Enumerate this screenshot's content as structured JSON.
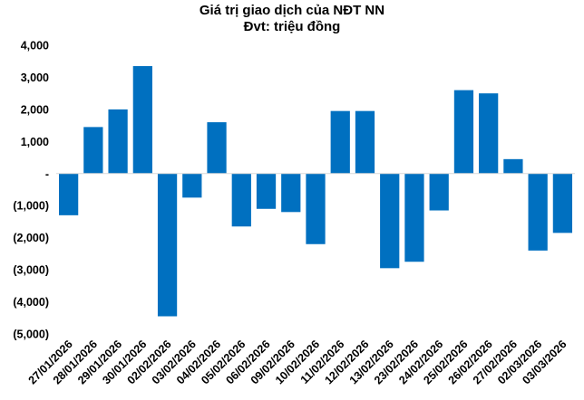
{
  "chart_data": {
    "type": "bar",
    "title": [
      "Giá trị giao dịch của NĐT NN",
      "Đvt: triệu đồng"
    ],
    "categories": [
      "27/01/2026",
      "28/01/2026",
      "29/01/2026",
      "30/01/2026",
      "02/02/2026",
      "03/02/2026",
      "04/02/2026",
      "05/02/2026",
      "06/02/2026",
      "09/02/2026",
      "10/02/2026",
      "11/02/2026",
      "12/02/2026",
      "13/02/2026",
      "23/02/2026",
      "24/02/2026",
      "25/02/2026",
      "26/02/2026",
      "27/02/2026",
      "02/03/2026",
      "03/03/2026"
    ],
    "values": [
      -1300,
      1450,
      2000,
      3350,
      -4450,
      -750,
      1600,
      -1650,
      -1100,
      -1200,
      -2200,
      1950,
      1950,
      -2950,
      -2750,
      -1150,
      2600,
      2500,
      450,
      -2400,
      -1850
    ],
    "ylim": [
      -5000,
      4000
    ],
    "yticks": [
      4000,
      3000,
      2000,
      1000,
      0,
      -1000,
      -2000,
      -3000,
      -4000,
      -5000
    ],
    "ytick_labels": [
      "4,000",
      "3,000",
      "2,000",
      "1,000",
      "-",
      "(1,000)",
      "(2,000)",
      "(3,000)",
      "(4,000)",
      "(5,000)"
    ],
    "xlabel": "",
    "ylabel": "",
    "grid": false,
    "bar_color": "#0070C0"
  }
}
